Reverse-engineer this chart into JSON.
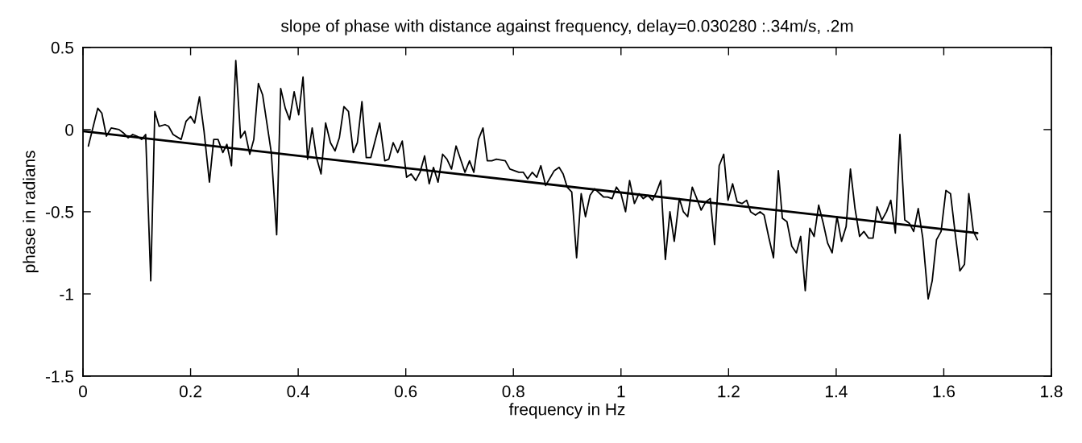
{
  "chart_data": {
    "type": "line",
    "title": "slope of phase with distance against frequency, delay=0.030280 :.34m/s, .2m",
    "xlabel": "frequency in Hz",
    "ylabel": "phase in radians",
    "xlim": [
      0,
      1.8
    ],
    "ylim": [
      -1.5,
      0.5
    ],
    "xticks": [
      0,
      0.2,
      0.4,
      0.6,
      0.8,
      1,
      1.2,
      1.4,
      1.6,
      1.8
    ],
    "yticks": [
      -1.5,
      -1,
      -0.5,
      0,
      0.5
    ],
    "grid": false,
    "series": [
      {
        "color": "#000000",
        "x": [
          0.01,
          0.0275,
          0.035,
          0.0435,
          0.0525,
          0.067,
          0.075,
          0.084,
          0.0925,
          0.1,
          0.109,
          0.1165,
          0.126,
          0.1335,
          0.1415,
          0.1525,
          0.159,
          0.1675,
          0.1825,
          0.1915,
          0.2,
          0.2075,
          0.2165,
          0.225,
          0.235,
          0.243,
          0.251,
          0.26,
          0.2675,
          0.276,
          0.284,
          0.293,
          0.301,
          0.31,
          0.3175,
          0.326,
          0.334,
          0.35,
          0.36,
          0.3675,
          0.376,
          0.384,
          0.3925,
          0.401,
          0.409,
          0.4175,
          0.426,
          0.434,
          0.4425,
          0.451,
          0.46,
          0.4685,
          0.4765,
          0.485,
          0.4935,
          0.5025,
          0.51,
          0.5185,
          0.5265,
          0.535,
          0.5515,
          0.561,
          0.5685,
          0.5765,
          0.585,
          0.5935,
          0.6015,
          0.61,
          0.6185,
          0.6265,
          0.635,
          0.6435,
          0.6515,
          0.66,
          0.6685,
          0.6765,
          0.685,
          0.6935,
          0.71,
          0.7185,
          0.7265,
          0.735,
          0.7435,
          0.7515,
          0.76,
          0.7685,
          0.785,
          0.7935,
          0.81,
          0.8185,
          0.8265,
          0.835,
          0.8435,
          0.851,
          0.86,
          0.876,
          0.885,
          0.8925,
          0.9,
          0.9085,
          0.9175,
          0.926,
          0.934,
          0.9425,
          0.951,
          0.9675,
          0.975,
          0.9835,
          0.9915,
          1.0,
          1.0085,
          1.016,
          1.025,
          1.0335,
          1.0415,
          1.05,
          1.0585,
          1.066,
          1.074,
          1.0825,
          1.091,
          1.099,
          1.1085,
          1.116,
          1.124,
          1.1325,
          1.141,
          1.149,
          1.1575,
          1.166,
          1.174,
          1.1825,
          1.191,
          1.199,
          1.2075,
          1.216,
          1.225,
          1.2335,
          1.241,
          1.25,
          1.2585,
          1.266,
          1.275,
          1.2835,
          1.2925,
          1.3,
          1.3085,
          1.3175,
          1.326,
          1.334,
          1.3425,
          1.351,
          1.359,
          1.3675,
          1.376,
          1.384,
          1.3925,
          1.4015,
          1.41,
          1.4185,
          1.4265,
          1.435,
          1.4435,
          1.4515,
          1.46,
          1.4685,
          1.476,
          1.485,
          1.4935,
          1.5015,
          1.51,
          1.5185,
          1.5275,
          1.536,
          1.544,
          1.5525,
          1.561,
          1.571,
          1.5785,
          1.5865,
          1.595,
          1.604,
          1.6125,
          1.6215,
          1.63,
          1.6385,
          1.6465,
          1.655,
          1.6625
        ],
        "values": [
          -0.1,
          0.13,
          0.1,
          -0.04,
          0.01,
          0.0,
          -0.02,
          -0.05,
          -0.03,
          -0.04,
          -0.06,
          -0.03,
          -0.92,
          0.11,
          0.02,
          0.03,
          0.02,
          -0.03,
          -0.06,
          0.05,
          0.08,
          0.04,
          0.2,
          -0.01,
          -0.32,
          -0.06,
          -0.06,
          -0.14,
          -0.09,
          -0.22,
          0.42,
          -0.05,
          -0.01,
          -0.15,
          -0.06,
          0.28,
          0.21,
          -0.14,
          -0.64,
          0.25,
          0.13,
          0.06,
          0.23,
          0.09,
          0.32,
          -0.18,
          0.01,
          -0.17,
          -0.27,
          0.04,
          -0.08,
          -0.13,
          -0.05,
          0.14,
          0.11,
          -0.14,
          -0.08,
          0.17,
          -0.17,
          -0.17,
          0.04,
          -0.19,
          -0.18,
          -0.08,
          -0.14,
          -0.07,
          -0.29,
          -0.27,
          -0.31,
          -0.26,
          -0.16,
          -0.33,
          -0.23,
          -0.32,
          -0.15,
          -0.18,
          -0.24,
          -0.1,
          -0.26,
          -0.19,
          -0.26,
          -0.06,
          0.01,
          -0.19,
          -0.19,
          -0.18,
          -0.19,
          -0.24,
          -0.26,
          -0.26,
          -0.3,
          -0.26,
          -0.29,
          -0.22,
          -0.34,
          -0.25,
          -0.23,
          -0.27,
          -0.35,
          -0.38,
          -0.78,
          -0.39,
          -0.53,
          -0.4,
          -0.36,
          -0.41,
          -0.41,
          -0.42,
          -0.35,
          -0.39,
          -0.5,
          -0.31,
          -0.45,
          -0.39,
          -0.42,
          -0.4,
          -0.43,
          -0.38,
          -0.31,
          -0.79,
          -0.5,
          -0.68,
          -0.42,
          -0.5,
          -0.53,
          -0.35,
          -0.42,
          -0.49,
          -0.44,
          -0.42,
          -0.7,
          -0.22,
          -0.15,
          -0.43,
          -0.33,
          -0.44,
          -0.45,
          -0.43,
          -0.5,
          -0.52,
          -0.5,
          -0.52,
          -0.66,
          -0.78,
          -0.25,
          -0.54,
          -0.56,
          -0.71,
          -0.75,
          -0.65,
          -0.98,
          -0.6,
          -0.65,
          -0.46,
          -0.57,
          -0.69,
          -0.75,
          -0.53,
          -0.68,
          -0.59,
          -0.24,
          -0.48,
          -0.65,
          -0.62,
          -0.66,
          -0.66,
          -0.47,
          -0.55,
          -0.5,
          -0.43,
          -0.63,
          -0.03,
          -0.55,
          -0.57,
          -0.62,
          -0.48,
          -0.66,
          -1.03,
          -0.92,
          -0.67,
          -0.62,
          -0.37,
          -0.39,
          -0.64,
          -0.86,
          -0.82,
          -0.39,
          -0.62,
          -0.67
        ]
      },
      {
        "type": "line",
        "color": "#000000",
        "x": [
          0,
          1.6625
        ],
        "values": [
          -0.01,
          -0.63
        ]
      }
    ]
  }
}
